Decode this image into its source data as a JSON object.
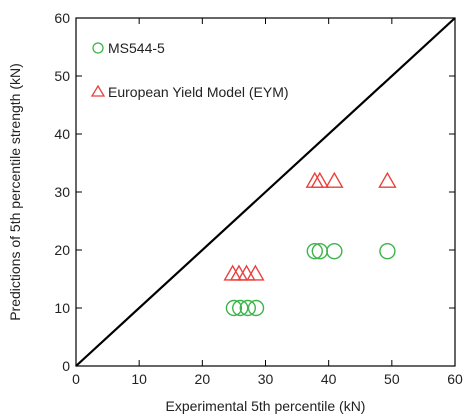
{
  "chart_data": {
    "type": "scatter",
    "xlabel": "Experimental  5th percentile  (kN)",
    "ylabel": "Predictions of 5th percentile strength  (kN)",
    "xlim": [
      0,
      60
    ],
    "ylim": [
      0,
      60
    ],
    "x_ticks": [
      "0",
      "10",
      "20",
      "30",
      "40",
      "50",
      "60"
    ],
    "y_ticks": [
      "0",
      "10",
      "20",
      "30",
      "40",
      "50",
      "60"
    ],
    "grid": false,
    "legend_position": "top-left",
    "reference_line": {
      "from": [
        0,
        0
      ],
      "to": [
        60,
        60
      ],
      "color": "#000000"
    },
    "series": [
      {
        "name": "MS544-5",
        "marker": "circle",
        "color": "#3cb44b",
        "points": [
          [
            25.0,
            10.0
          ],
          [
            26.0,
            10.0
          ],
          [
            27.2,
            10.0
          ],
          [
            28.5,
            10.0
          ],
          [
            37.8,
            19.8
          ],
          [
            38.6,
            19.8
          ],
          [
            40.9,
            19.8
          ],
          [
            49.3,
            19.8
          ]
        ]
      },
      {
        "name": "European Yield Model (EYM)",
        "marker": "triangle",
        "color": "#e8413c",
        "points": [
          [
            24.8,
            15.8
          ],
          [
            25.8,
            15.8
          ],
          [
            27.0,
            15.8
          ],
          [
            28.4,
            15.8
          ],
          [
            37.8,
            31.8
          ],
          [
            38.6,
            31.8
          ],
          [
            40.9,
            31.8
          ],
          [
            49.3,
            31.8
          ]
        ]
      }
    ]
  }
}
